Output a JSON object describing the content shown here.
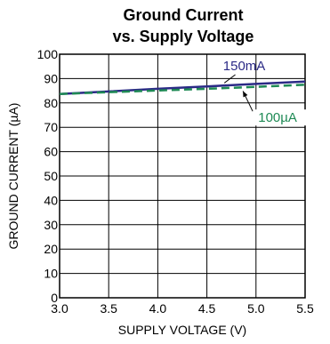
{
  "chart_data": {
    "type": "line",
    "title": "Ground Current\nvs. Supply Voltage",
    "xlabel": "SUPPLY VOLTAGE (V)",
    "ylabel": "GROUND CURRENT (µA)",
    "xlim": [
      3.0,
      5.5
    ],
    "ylim": [
      0,
      100
    ],
    "xticks": [
      "3.0",
      "3.5",
      "4.0",
      "4.5",
      "5.0",
      "5.5"
    ],
    "yticks": [
      "0",
      "10",
      "20",
      "30",
      "40",
      "50",
      "60",
      "70",
      "80",
      "90",
      "100"
    ],
    "grid": true,
    "series": [
      {
        "name": "150mA",
        "color": "#2b2a86",
        "dash": "solid",
        "x": [
          3.0,
          3.5,
          4.0,
          4.5,
          5.0,
          5.5
        ],
        "y": [
          83.7,
          84.7,
          85.8,
          86.8,
          87.8,
          88.8
        ]
      },
      {
        "name": "100µA",
        "color": "#1f8a55",
        "dash": "dashed",
        "x": [
          3.0,
          3.5,
          4.0,
          4.5,
          5.0,
          5.5
        ],
        "y": [
          83.7,
          84.4,
          85.1,
          85.8,
          86.6,
          87.5
        ]
      }
    ],
    "annotations": [
      {
        "text": "150mA",
        "series": 0,
        "color": "#2b2a86"
      },
      {
        "text": "100µA",
        "series": 1,
        "color": "#1f8a55"
      }
    ]
  }
}
